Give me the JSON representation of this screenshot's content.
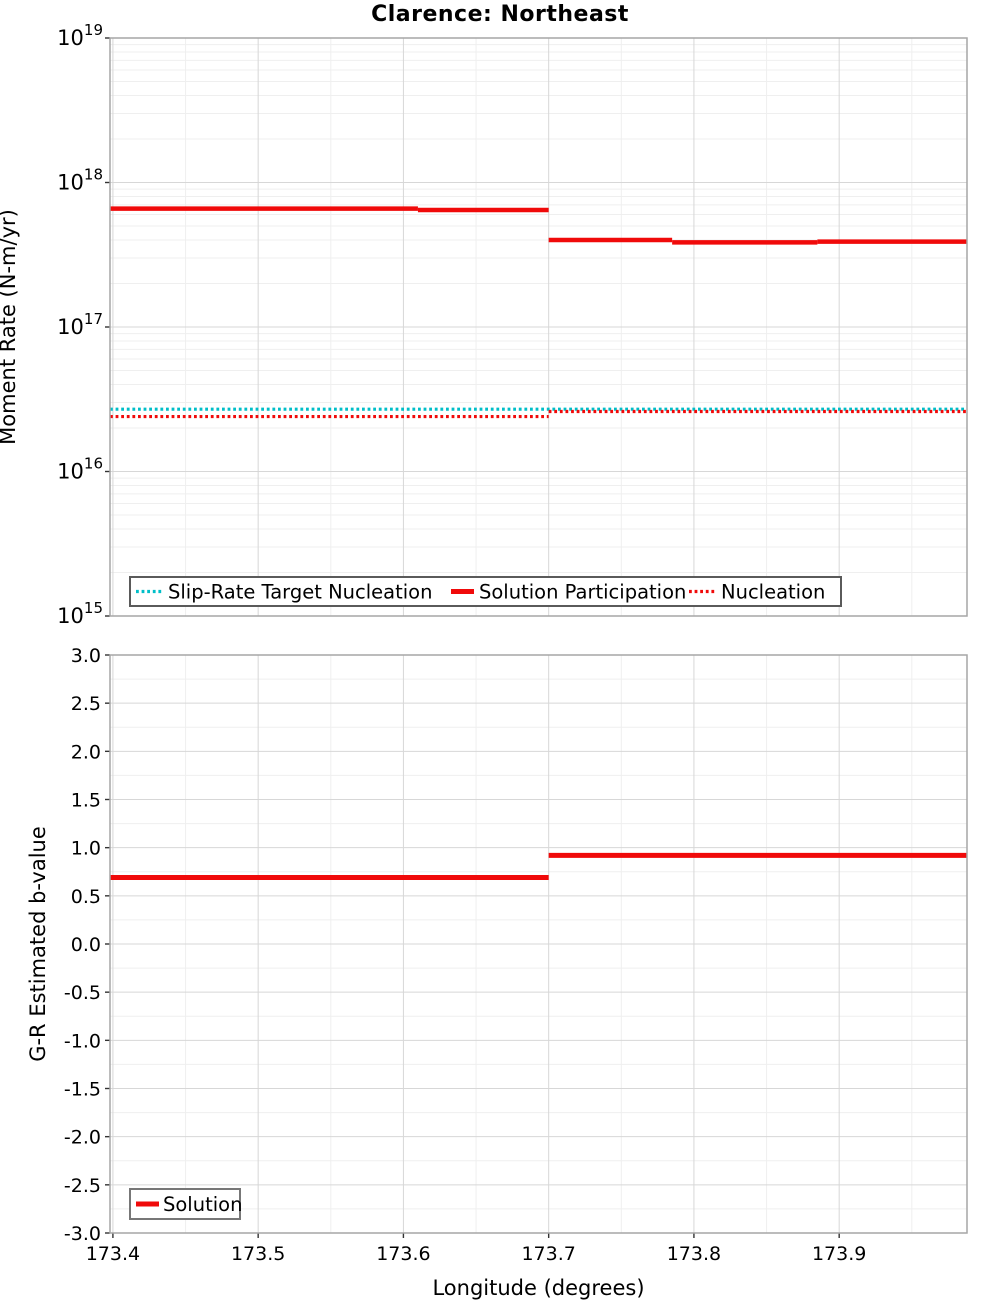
{
  "title": "Clarence: Northeast",
  "colors": {
    "red": "#f00a0a",
    "cyan": "#00bec8",
    "grid_major": "#d7d7d7",
    "grid_minor": "#efefef",
    "frame": "#a6a6a6",
    "legend_border": "#5a5a5a",
    "text": "#000000"
  },
  "chart_data": [
    {
      "type": "line",
      "panel": "moment-rate",
      "title": "Clarence: Northeast",
      "ylabel": "Moment Rate (N-m/yr)",
      "xlabel": "",
      "yscale": "log",
      "ylim": [
        1000000000000000.0,
        1e+19
      ],
      "xlim": [
        173.398,
        173.988
      ],
      "ytick_exponents": [
        19,
        18,
        17,
        16,
        15
      ],
      "ytick_base": "10",
      "xticks": [
        173.4,
        173.5,
        173.6,
        173.7,
        173.8,
        173.9
      ],
      "xtick_labels_shown": false,
      "grid": true,
      "legend": {
        "position": "bottom-inside-wide",
        "border": true
      },
      "series": [
        {
          "name": "Slip-Rate Target Nucleation",
          "color": "#00bec8",
          "style": "dotted",
          "width": 3.2,
          "steps": [
            {
              "x0": 173.398,
              "x1": 173.988,
              "y": 2.7e+16
            }
          ]
        },
        {
          "name": "Solution Participation",
          "color": "#f00a0a",
          "style": "solid",
          "width": 4.5,
          "steps": [
            {
              "x0": 173.398,
              "x1": 173.61,
              "y": 6.6e+17
            },
            {
              "x0": 173.61,
              "x1": 173.7,
              "y": 6.45e+17
            },
            {
              "x0": 173.7,
              "x1": 173.785,
              "y": 4e+17
            },
            {
              "x0": 173.785,
              "x1": 173.885,
              "y": 3.85e+17
            },
            {
              "x0": 173.885,
              "x1": 173.988,
              "y": 3.9e+17
            }
          ]
        },
        {
          "name": "Nucleation",
          "color": "#f00a0a",
          "style": "dotted",
          "width": 3.2,
          "steps": [
            {
              "x0": 173.398,
              "x1": 173.7,
              "y": 2.4e+16
            },
            {
              "x0": 173.7,
              "x1": 173.988,
              "y": 2.6e+16
            }
          ]
        }
      ]
    },
    {
      "type": "line",
      "panel": "b-value",
      "title": "",
      "ylabel": "G-R Estimated b-value",
      "xlabel": "Longitude (degrees)",
      "yscale": "linear",
      "ylim": [
        -3.0,
        3.0
      ],
      "xlim": [
        173.398,
        173.988
      ],
      "yticks": [
        "3.0",
        "2.5",
        "2.0",
        "1.5",
        "1.0",
        "0.5",
        "0.0",
        "-0.5",
        "-1.0",
        "-1.5",
        "-2.0",
        "-2.5",
        "-3.0"
      ],
      "xticks": [
        173.4,
        173.5,
        173.6,
        173.7,
        173.8,
        173.9
      ],
      "xtick_labels": [
        "173.4",
        "173.5",
        "173.6",
        "173.7",
        "173.8",
        "173.9"
      ],
      "xtick_labels_shown": true,
      "grid": true,
      "legend": {
        "position": "bottom-left-inside",
        "border": true
      },
      "series": [
        {
          "name": "Solution",
          "color": "#f00a0a",
          "style": "solid",
          "width": 5,
          "steps": [
            {
              "x0": 173.398,
              "x1": 173.7,
              "y": 0.69
            },
            {
              "x0": 173.7,
              "x1": 173.988,
              "y": 0.92
            }
          ]
        }
      ]
    }
  ]
}
